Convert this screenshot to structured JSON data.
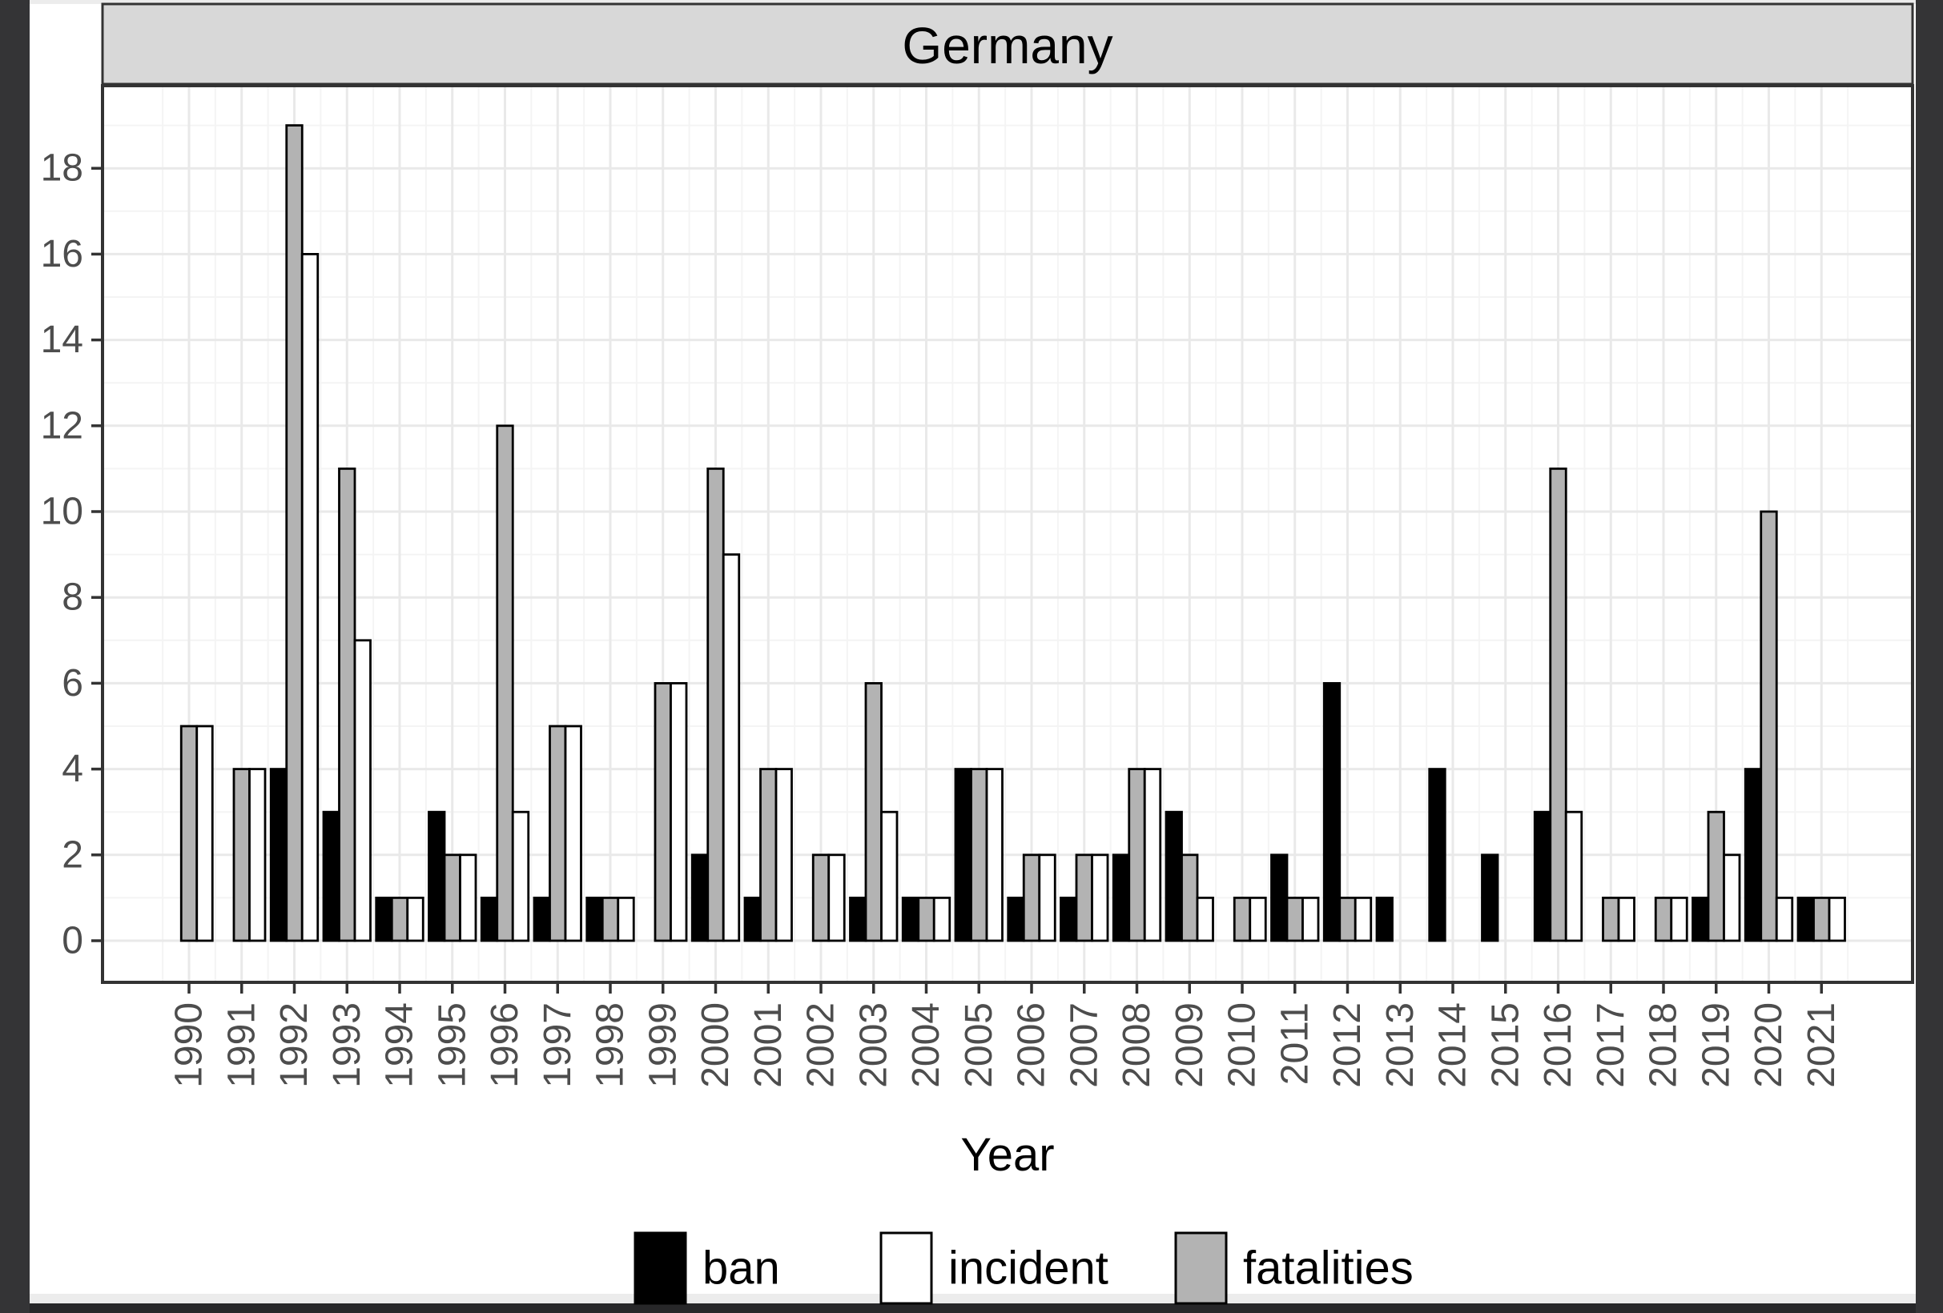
{
  "strip_title": "Germany",
  "x_axis": {
    "title": "Year"
  },
  "y_axis": {
    "tick_values": [
      0,
      2,
      4,
      6,
      8,
      10,
      12,
      14,
      16,
      18
    ]
  },
  "legend": [
    {
      "label": "ban",
      "fill": "#000000"
    },
    {
      "label": "incident",
      "fill": "#ffffff"
    },
    {
      "label": "fatalities",
      "fill": "#b3b3b3"
    }
  ],
  "colors": {
    "ban": "#000000",
    "incident": "#ffffff",
    "fatalities": "#b3b3b3",
    "bar_outline": "#000000",
    "strip_background": "#d8d8d8",
    "panel_border": "#333333",
    "axis_text": "#4d4d4d",
    "grid_major": "#e9e9e9",
    "grid_minor": "#f4f4f4",
    "frame_dark": "#343436",
    "frame_light": "#ececec"
  },
  "chart_data": {
    "type": "bar",
    "title": "Germany",
    "xlabel": "Year",
    "ylabel": "",
    "categories": [
      "1990",
      "1991",
      "1992",
      "1993",
      "1994",
      "1995",
      "1996",
      "1997",
      "1998",
      "1999",
      "2000",
      "2001",
      "2002",
      "2003",
      "2004",
      "2005",
      "2006",
      "2007",
      "2008",
      "2009",
      "2010",
      "2011",
      "2012",
      "2013",
      "2014",
      "2015",
      "2016",
      "2017",
      "2018",
      "2019",
      "2020",
      "2021"
    ],
    "series": [
      {
        "name": "ban",
        "color": "#000000",
        "values": [
          0,
          0,
          4,
          3,
          1,
          3,
          1,
          1,
          1,
          0,
          2,
          1,
          0,
          1,
          1,
          4,
          1,
          1,
          2,
          3,
          0,
          2,
          6,
          1,
          4,
          2,
          3,
          0,
          0,
          1,
          4,
          1
        ]
      },
      {
        "name": "fatalities",
        "color": "#b3b3b3",
        "values": [
          5,
          4,
          19,
          11,
          1,
          2,
          12,
          5,
          1,
          6,
          11,
          4,
          2,
          6,
          1,
          4,
          2,
          2,
          4,
          2,
          1,
          1,
          1,
          0,
          0,
          0,
          11,
          1,
          1,
          3,
          10,
          1
        ]
      },
      {
        "name": "incident",
        "color": "#ffffff",
        "values": [
          5,
          4,
          16,
          7,
          1,
          2,
          3,
          5,
          1,
          6,
          9,
          4,
          2,
          3,
          1,
          4,
          2,
          2,
          4,
          1,
          1,
          1,
          1,
          0,
          0,
          0,
          3,
          1,
          1,
          2,
          1,
          1
        ]
      }
    ],
    "bar_draw_order": [
      "ban",
      "fatalities",
      "incident"
    ],
    "legend_order": [
      "ban",
      "incident",
      "fatalities"
    ],
    "ylim": [
      0,
      19
    ],
    "yticks": [
      0,
      2,
      4,
      6,
      8,
      10,
      12,
      14,
      16,
      18
    ],
    "grid": true,
    "legend_position": "bottom",
    "facet_label": "Germany"
  }
}
